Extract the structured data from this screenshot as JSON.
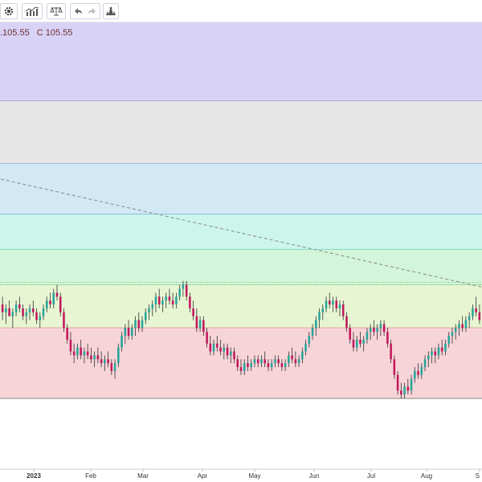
{
  "toolbar": {
    "buttons": [
      {
        "name": "settings-button",
        "icon": "gear-icon"
      },
      {
        "name": "indicators-button",
        "icon": "indicators-icon"
      },
      {
        "name": "compare-button",
        "icon": "scale-icon"
      },
      {
        "name": "undo-button",
        "icon": "undo-icon"
      },
      {
        "name": "redo-button",
        "icon": "redo-icon"
      },
      {
        "name": "alert-button",
        "icon": "alert-icon"
      }
    ]
  },
  "legend": {
    "low": ".105.55",
    "close": "C 105.55"
  },
  "colors": {
    "up": "#26a69a",
    "down": "#c2185b",
    "wick": "#333333",
    "zone_purple": "#d9d2f7",
    "zone_gray": "#e6e6e6",
    "zone_blue": "#d2e8f5",
    "zone_teal": "#cdf5ec",
    "zone_green": "#d3f5d9",
    "zone_yellow": "#e8f5d3",
    "zone_red": "#f7d4d8",
    "trend_line": "#888888"
  },
  "chart_data": {
    "type": "candlestick",
    "x_axis_labels": [
      "2023",
      "Feb",
      "Mar",
      "Apr",
      "May",
      "Jun",
      "Jul",
      "Aug",
      "S"
    ],
    "zones": [
      {
        "name": "zone-purple",
        "from": 100,
        "to": 80
      },
      {
        "name": "zone-gray",
        "from": 80,
        "to": 64
      },
      {
        "name": "zone-blue",
        "from": 64,
        "to": 51
      },
      {
        "name": "zone-teal",
        "from": 51,
        "to": 42
      },
      {
        "name": "zone-green",
        "from": 42,
        "to": 33
      },
      {
        "name": "zone-yellow",
        "from": 33,
        "to": 22
      },
      {
        "name": "zone-red",
        "from": 22,
        "to": 4
      }
    ],
    "trend_line": {
      "from": [
        0,
        60
      ],
      "to": [
        205,
        20
      ]
    },
    "series": [
      {
        "o": 28,
        "h": 30,
        "l": 24,
        "c": 26
      },
      {
        "o": 26,
        "h": 28,
        "l": 23,
        "c": 27
      },
      {
        "o": 27,
        "h": 29,
        "l": 25,
        "c": 25
      },
      {
        "o": 25,
        "h": 27,
        "l": 22,
        "c": 26
      },
      {
        "o": 26,
        "h": 29,
        "l": 25,
        "c": 28
      },
      {
        "o": 28,
        "h": 30,
        "l": 26,
        "c": 27
      },
      {
        "o": 27,
        "h": 28,
        "l": 24,
        "c": 25
      },
      {
        "o": 25,
        "h": 27,
        "l": 23,
        "c": 26
      },
      {
        "o": 26,
        "h": 28,
        "l": 24,
        "c": 27
      },
      {
        "o": 27,
        "h": 29,
        "l": 25,
        "c": 26
      },
      {
        "o": 26,
        "h": 27,
        "l": 23,
        "c": 24
      },
      {
        "o": 24,
        "h": 26,
        "l": 22,
        "c": 25
      },
      {
        "o": 25,
        "h": 28,
        "l": 24,
        "c": 27
      },
      {
        "o": 27,
        "h": 30,
        "l": 26,
        "c": 29
      },
      {
        "o": 29,
        "h": 31,
        "l": 27,
        "c": 28
      },
      {
        "o": 28,
        "h": 32,
        "l": 27,
        "c": 31
      },
      {
        "o": 31,
        "h": 33,
        "l": 29,
        "c": 30
      },
      {
        "o": 30,
        "h": 31,
        "l": 25,
        "c": 26
      },
      {
        "o": 26,
        "h": 27,
        "l": 21,
        "c": 22
      },
      {
        "o": 22,
        "h": 23,
        "l": 18,
        "c": 19
      },
      {
        "o": 19,
        "h": 21,
        "l": 15,
        "c": 16
      },
      {
        "o": 16,
        "h": 18,
        "l": 13,
        "c": 15
      },
      {
        "o": 15,
        "h": 18,
        "l": 14,
        "c": 17
      },
      {
        "o": 17,
        "h": 19,
        "l": 14,
        "c": 15
      },
      {
        "o": 15,
        "h": 17,
        "l": 13,
        "c": 16
      },
      {
        "o": 16,
        "h": 18,
        "l": 14,
        "c": 15
      },
      {
        "o": 15,
        "h": 17,
        "l": 13,
        "c": 14
      },
      {
        "o": 14,
        "h": 16,
        "l": 12,
        "c": 15
      },
      {
        "o": 15,
        "h": 17,
        "l": 13,
        "c": 14
      },
      {
        "o": 14,
        "h": 16,
        "l": 12,
        "c": 13
      },
      {
        "o": 13,
        "h": 15,
        "l": 11,
        "c": 14
      },
      {
        "o": 14,
        "h": 16,
        "l": 12,
        "c": 13
      },
      {
        "o": 13,
        "h": 14,
        "l": 10,
        "c": 11
      },
      {
        "o": 11,
        "h": 14,
        "l": 9,
        "c": 13
      },
      {
        "o": 13,
        "h": 18,
        "l": 12,
        "c": 17
      },
      {
        "o": 17,
        "h": 21,
        "l": 16,
        "c": 20
      },
      {
        "o": 20,
        "h": 23,
        "l": 18,
        "c": 22
      },
      {
        "o": 22,
        "h": 24,
        "l": 19,
        "c": 20
      },
      {
        "o": 20,
        "h": 23,
        "l": 19,
        "c": 22
      },
      {
        "o": 22,
        "h": 25,
        "l": 20,
        "c": 24
      },
      {
        "o": 24,
        "h": 26,
        "l": 21,
        "c": 22
      },
      {
        "o": 22,
        "h": 25,
        "l": 21,
        "c": 24
      },
      {
        "o": 24,
        "h": 27,
        "l": 23,
        "c": 26
      },
      {
        "o": 26,
        "h": 28,
        "l": 24,
        "c": 27
      },
      {
        "o": 27,
        "h": 29,
        "l": 25,
        "c": 28
      },
      {
        "o": 28,
        "h": 31,
        "l": 26,
        "c": 30
      },
      {
        "o": 30,
        "h": 32,
        "l": 27,
        "c": 28
      },
      {
        "o": 28,
        "h": 30,
        "l": 26,
        "c": 29
      },
      {
        "o": 29,
        "h": 31,
        "l": 27,
        "c": 30
      },
      {
        "o": 30,
        "h": 32,
        "l": 28,
        "c": 29
      },
      {
        "o": 29,
        "h": 31,
        "l": 27,
        "c": 28
      },
      {
        "o": 28,
        "h": 31,
        "l": 27,
        "c": 30
      },
      {
        "o": 30,
        "h": 33,
        "l": 29,
        "c": 32
      },
      {
        "o": 32,
        "h": 34,
        "l": 30,
        "c": 33
      },
      {
        "o": 33,
        "h": 34,
        "l": 29,
        "c": 30
      },
      {
        "o": 30,
        "h": 31,
        "l": 26,
        "c": 27
      },
      {
        "o": 27,
        "h": 29,
        "l": 24,
        "c": 25
      },
      {
        "o": 25,
        "h": 27,
        "l": 21,
        "c": 22
      },
      {
        "o": 22,
        "h": 25,
        "l": 21,
        "c": 24
      },
      {
        "o": 24,
        "h": 25,
        "l": 20,
        "c": 21
      },
      {
        "o": 21,
        "h": 22,
        "l": 17,
        "c": 18
      },
      {
        "o": 18,
        "h": 20,
        "l": 15,
        "c": 16
      },
      {
        "o": 16,
        "h": 19,
        "l": 15,
        "c": 18
      },
      {
        "o": 18,
        "h": 20,
        "l": 16,
        "c": 17
      },
      {
        "o": 17,
        "h": 19,
        "l": 15,
        "c": 16
      },
      {
        "o": 16,
        "h": 18,
        "l": 14,
        "c": 17
      },
      {
        "o": 17,
        "h": 18,
        "l": 14,
        "c": 15
      },
      {
        "o": 15,
        "h": 17,
        "l": 13,
        "c": 16
      },
      {
        "o": 16,
        "h": 17,
        "l": 13,
        "c": 14
      },
      {
        "o": 14,
        "h": 15,
        "l": 11,
        "c": 12
      },
      {
        "o": 12,
        "h": 14,
        "l": 10,
        "c": 11
      },
      {
        "o": 11,
        "h": 14,
        "l": 10,
        "c": 13
      },
      {
        "o": 13,
        "h": 15,
        "l": 11,
        "c": 12
      },
      {
        "o": 12,
        "h": 14,
        "l": 11,
        "c": 13
      },
      {
        "o": 13,
        "h": 15,
        "l": 12,
        "c": 14
      },
      {
        "o": 14,
        "h": 15,
        "l": 12,
        "c": 13
      },
      {
        "o": 13,
        "h": 15,
        "l": 12,
        "c": 14
      },
      {
        "o": 14,
        "h": 16,
        "l": 12,
        "c": 13
      },
      {
        "o": 13,
        "h": 14,
        "l": 11,
        "c": 12
      },
      {
        "o": 12,
        "h": 14,
        "l": 11,
        "c": 13
      },
      {
        "o": 13,
        "h": 15,
        "l": 12,
        "c": 14
      },
      {
        "o": 14,
        "h": 15,
        "l": 12,
        "c": 13
      },
      {
        "o": 13,
        "h": 14,
        "l": 11,
        "c": 12
      },
      {
        "o": 12,
        "h": 14,
        "l": 11,
        "c": 13
      },
      {
        "o": 13,
        "h": 16,
        "l": 12,
        "c": 15
      },
      {
        "o": 15,
        "h": 17,
        "l": 13,
        "c": 14
      },
      {
        "o": 14,
        "h": 16,
        "l": 12,
        "c": 13
      },
      {
        "o": 13,
        "h": 15,
        "l": 12,
        "c": 14
      },
      {
        "o": 14,
        "h": 17,
        "l": 13,
        "c": 16
      },
      {
        "o": 16,
        "h": 19,
        "l": 15,
        "c": 18
      },
      {
        "o": 18,
        "h": 21,
        "l": 17,
        "c": 20
      },
      {
        "o": 20,
        "h": 23,
        "l": 19,
        "c": 22
      },
      {
        "o": 22,
        "h": 25,
        "l": 20,
        "c": 24
      },
      {
        "o": 24,
        "h": 27,
        "l": 22,
        "c": 26
      },
      {
        "o": 26,
        "h": 28,
        "l": 24,
        "c": 27
      },
      {
        "o": 27,
        "h": 30,
        "l": 26,
        "c": 29
      },
      {
        "o": 29,
        "h": 31,
        "l": 27,
        "c": 28
      },
      {
        "o": 28,
        "h": 30,
        "l": 26,
        "c": 29
      },
      {
        "o": 29,
        "h": 30,
        "l": 26,
        "c": 27
      },
      {
        "o": 27,
        "h": 29,
        "l": 25,
        "c": 28
      },
      {
        "o": 28,
        "h": 29,
        "l": 24,
        "c": 25
      },
      {
        "o": 25,
        "h": 26,
        "l": 21,
        "c": 22
      },
      {
        "o": 22,
        "h": 23,
        "l": 18,
        "c": 19
      },
      {
        "o": 19,
        "h": 21,
        "l": 16,
        "c": 17
      },
      {
        "o": 17,
        "h": 20,
        "l": 16,
        "c": 19
      },
      {
        "o": 19,
        "h": 21,
        "l": 17,
        "c": 18
      },
      {
        "o": 18,
        "h": 20,
        "l": 16,
        "c": 19
      },
      {
        "o": 19,
        "h": 22,
        "l": 18,
        "c": 21
      },
      {
        "o": 21,
        "h": 23,
        "l": 19,
        "c": 22
      },
      {
        "o": 22,
        "h": 24,
        "l": 20,
        "c": 21
      },
      {
        "o": 21,
        "h": 23,
        "l": 19,
        "c": 22
      },
      {
        "o": 22,
        "h": 24,
        "l": 20,
        "c": 23
      },
      {
        "o": 23,
        "h": 24,
        "l": 20,
        "c": 21
      },
      {
        "o": 21,
        "h": 22,
        "l": 17,
        "c": 18
      },
      {
        "o": 18,
        "h": 19,
        "l": 13,
        "c": 14
      },
      {
        "o": 14,
        "h": 15,
        "l": 9,
        "c": 10
      },
      {
        "o": 10,
        "h": 11,
        "l": 5,
        "c": 6
      },
      {
        "o": 6,
        "h": 8,
        "l": 4,
        "c": 5
      },
      {
        "o": 5,
        "h": 8,
        "l": 4,
        "c": 7
      },
      {
        "o": 7,
        "h": 9,
        "l": 5,
        "c": 6
      },
      {
        "o": 6,
        "h": 10,
        "l": 5,
        "c": 9
      },
      {
        "o": 9,
        "h": 12,
        "l": 8,
        "c": 11
      },
      {
        "o": 11,
        "h": 13,
        "l": 9,
        "c": 10
      },
      {
        "o": 10,
        "h": 13,
        "l": 9,
        "c": 12
      },
      {
        "o": 12,
        "h": 15,
        "l": 11,
        "c": 14
      },
      {
        "o": 14,
        "h": 16,
        "l": 12,
        "c": 15
      },
      {
        "o": 15,
        "h": 17,
        "l": 13,
        "c": 16
      },
      {
        "o": 16,
        "h": 17,
        "l": 13,
        "c": 15
      },
      {
        "o": 15,
        "h": 18,
        "l": 14,
        "c": 17
      },
      {
        "o": 17,
        "h": 19,
        "l": 15,
        "c": 16
      },
      {
        "o": 16,
        "h": 19,
        "l": 15,
        "c": 18
      },
      {
        "o": 18,
        "h": 21,
        "l": 17,
        "c": 20
      },
      {
        "o": 20,
        "h": 22,
        "l": 18,
        "c": 21
      },
      {
        "o": 21,
        "h": 23,
        "l": 19,
        "c": 22
      },
      {
        "o": 22,
        "h": 24,
        "l": 20,
        "c": 23
      },
      {
        "o": 23,
        "h": 25,
        "l": 21,
        "c": 22
      },
      {
        "o": 22,
        "h": 25,
        "l": 21,
        "c": 24
      },
      {
        "o": 24,
        "h": 26,
        "l": 22,
        "c": 25
      },
      {
        "o": 25,
        "h": 28,
        "l": 24,
        "c": 27
      },
      {
        "o": 27,
        "h": 30,
        "l": 25,
        "c": 26
      },
      {
        "o": 26,
        "h": 28,
        "l": 23,
        "c": 24
      }
    ]
  }
}
